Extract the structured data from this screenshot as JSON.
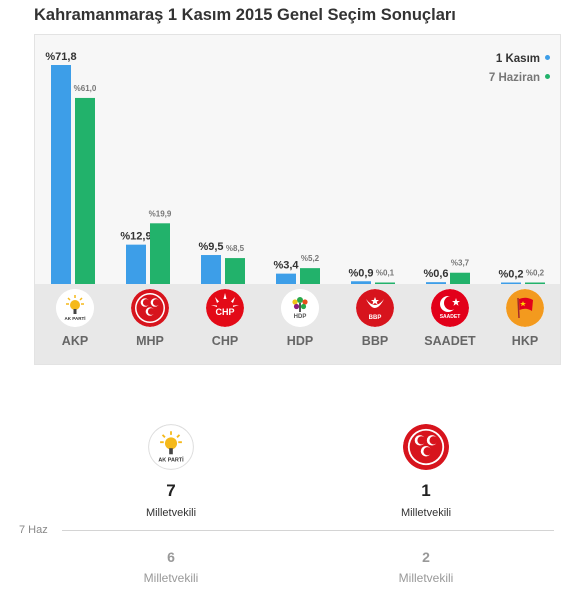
{
  "title": "Kahramanmaraş 1 Kasım 2015 Genel Seçim Sonuçları",
  "colors": {
    "series1": "#3d9ee8",
    "series2": "#22b26b",
    "label_dark": "#333333",
    "label_light": "#777777"
  },
  "legend": {
    "series1": "1 Kasım",
    "series2": "7 Haziran"
  },
  "chart_data": {
    "type": "bar",
    "title": "Kahramanmaraş 1 Kasım 2015 Genel Seçim Sonuçları",
    "categories": [
      "AKP",
      "MHP",
      "CHP",
      "HDP",
      "BBP",
      "SAADET",
      "HKP"
    ],
    "series": [
      {
        "name": "1 Kasım",
        "values": [
          71.8,
          12.9,
          9.5,
          3.4,
          0.9,
          0.6,
          0.2
        ],
        "labels": [
          "%71,8",
          "%12,9",
          "%9,5",
          "%3,4",
          "%0,9",
          "%0,6",
          "%0,2"
        ]
      },
      {
        "name": "7 Haziran",
        "values": [
          61.0,
          19.9,
          8.5,
          5.2,
          0.1,
          3.7,
          0.2
        ],
        "labels": [
          "%61,0",
          "%19,9",
          "%8,5",
          "%5,2",
          "%0,1",
          "%3,7",
          "%0,2"
        ]
      }
    ],
    "ylim": [
      0,
      71.8
    ],
    "grid": false,
    "legend_position": "top-right"
  },
  "parties": [
    {
      "name": "AKP",
      "logo": "akp-logo-icon",
      "logo_text": "AK PARTİ"
    },
    {
      "name": "MHP",
      "logo": "mhp-logo-icon",
      "logo_text": ""
    },
    {
      "name": "CHP",
      "logo": "chp-logo-icon",
      "logo_text": "CHP"
    },
    {
      "name": "HDP",
      "logo": "hdp-logo-icon",
      "logo_text": "HDP"
    },
    {
      "name": "BBP",
      "logo": "bbp-logo-icon",
      "logo_text": "BBP"
    },
    {
      "name": "SAADET",
      "logo": "saadet-logo-icon",
      "logo_text": "SAADET"
    },
    {
      "name": "HKP",
      "logo": "hkp-logo-icon",
      "logo_text": ""
    }
  ],
  "seats": {
    "current": [
      {
        "party": "AKP",
        "count": "7",
        "label": "Milletvekili"
      },
      {
        "party": "MHP",
        "count": "1",
        "label": "Milletvekili"
      }
    ],
    "previous_label": "7 Haz",
    "previous": [
      {
        "party": "AKP",
        "count": "6",
        "label": "Milletvekili"
      },
      {
        "party": "MHP",
        "count": "2",
        "label": "Milletvekili"
      }
    ]
  }
}
